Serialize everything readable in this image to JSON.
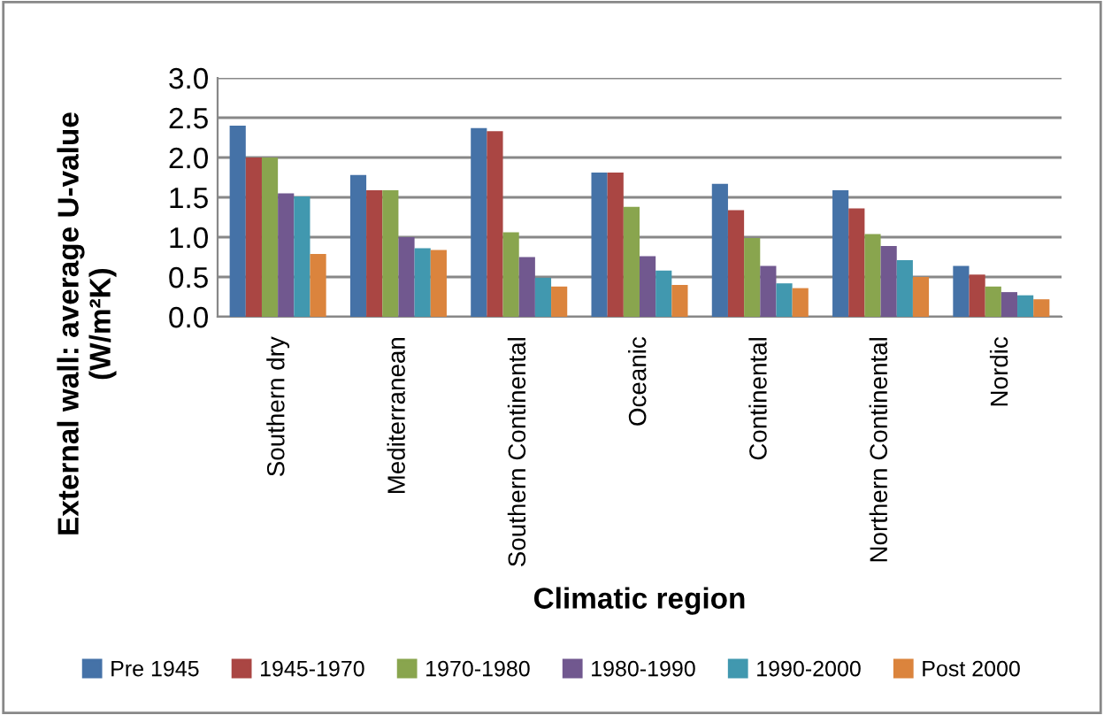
{
  "chart_data": {
    "type": "bar",
    "xlabel": "Climatic region",
    "ylabel": "External wall: average U-value\n(W/m²K)",
    "categories": [
      "Southern dry",
      "Mediterranean",
      "Southern Continental",
      "Oceanic",
      "Continental",
      "Northern Continental",
      "Nordic"
    ],
    "series": [
      {
        "name": "Pre 1945",
        "color": "#4572a7",
        "values": [
          2.4,
          1.78,
          2.37,
          1.81,
          1.67,
          1.59,
          0.64
        ]
      },
      {
        "name": "1945-1970",
        "color": "#aa4643",
        "values": [
          2.0,
          1.59,
          2.33,
          1.81,
          1.34,
          1.36,
          0.53
        ]
      },
      {
        "name": "1970-1980",
        "color": "#89a54e",
        "values": [
          2.0,
          1.59,
          1.06,
          1.38,
          0.99,
          1.04,
          0.38
        ]
      },
      {
        "name": "1980-1990",
        "color": "#71588f",
        "values": [
          1.55,
          1.0,
          0.75,
          0.76,
          0.64,
          0.89,
          0.31
        ]
      },
      {
        "name": "1990-2000",
        "color": "#4198af",
        "values": [
          1.51,
          0.86,
          0.49,
          0.58,
          0.42,
          0.71,
          0.27
        ]
      },
      {
        "name": "Post 2000",
        "color": "#db843d",
        "values": [
          0.79,
          0.84,
          0.38,
          0.4,
          0.36,
          0.5,
          0.22
        ]
      }
    ],
    "ylim": [
      0,
      3
    ],
    "yticks": [
      {
        "value": 0,
        "label": "0.0"
      },
      {
        "value": 0.5,
        "label": "0.5"
      },
      {
        "value": 1,
        "label": "1.0"
      },
      {
        "value": 1.5,
        "label": "1.5"
      },
      {
        "value": 2,
        "label": "2.0"
      },
      {
        "value": 2.5,
        "label": "2.5"
      },
      {
        "value": 3,
        "label": "3.0"
      }
    ],
    "grid": "y",
    "legend": "bottom"
  }
}
